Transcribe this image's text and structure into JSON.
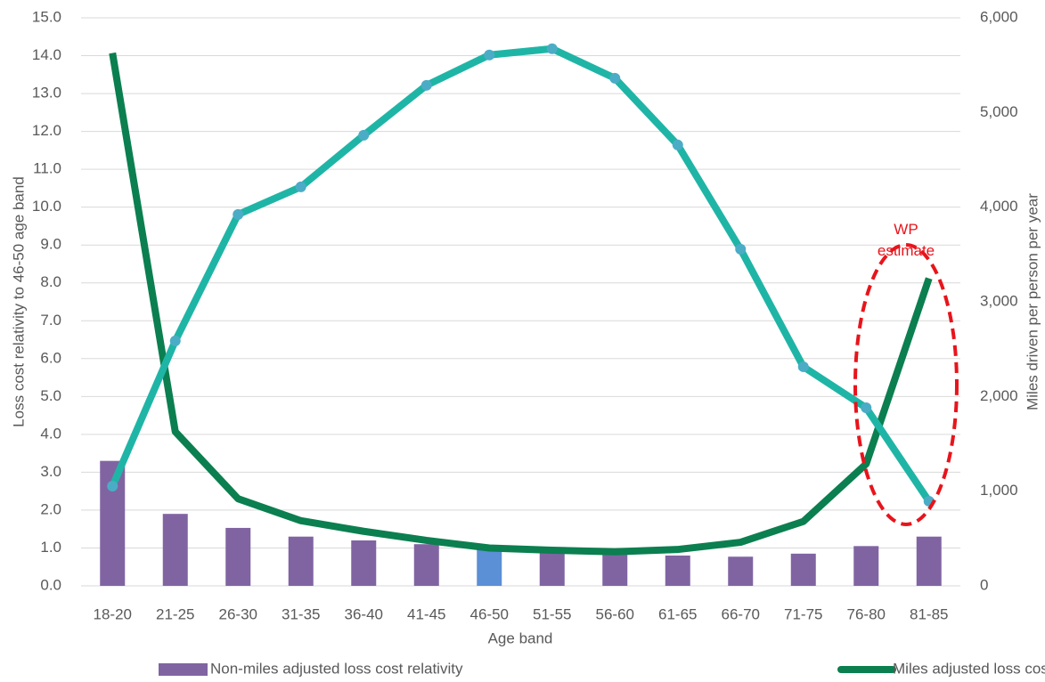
{
  "chart_data": {
    "type": "bar-line",
    "x_label": "Age band",
    "y_label": "Loss cost relativity to 46-50 age band",
    "y2_label": "Miles driven per person per year",
    "annotation": "WP estimate",
    "categories": [
      "18-20",
      "21-25",
      "26-30",
      "31-35",
      "36-40",
      "41-45",
      "46-50",
      "51-55",
      "56-60",
      "61-65",
      "66-70",
      "71-75",
      "76-80",
      "81-85"
    ],
    "ylim": [
      0,
      15
    ],
    "yticks": [
      {
        "value": 0,
        "label": "0.0"
      },
      {
        "value": 1,
        "label": "1.0"
      },
      {
        "value": 2,
        "label": "2.0"
      },
      {
        "value": 3,
        "label": "3.0"
      },
      {
        "value": 4,
        "label": "4.0"
      },
      {
        "value": 5,
        "label": "5.0"
      },
      {
        "value": 6,
        "label": "6.0"
      },
      {
        "value": 7,
        "label": "7.0"
      },
      {
        "value": 8,
        "label": "8.0"
      },
      {
        "value": 9,
        "label": "9.0"
      },
      {
        "value": 10,
        "label": "10.0"
      },
      {
        "value": 11,
        "label": "11.0"
      },
      {
        "value": 12,
        "label": "12.0"
      },
      {
        "value": 13,
        "label": "13.0"
      },
      {
        "value": 14,
        "label": "14.0"
      },
      {
        "value": 15,
        "label": "15.0"
      }
    ],
    "y2lim": [
      0,
      6000
    ],
    "y2ticks": [
      0,
      {
        "value": 1000,
        "label": "1,000"
      },
      {
        "value": 2000,
        "label": "2,000"
      },
      {
        "value": 3000,
        "label": "3,000"
      },
      {
        "value": 4000,
        "label": "4,000"
      },
      {
        "value": 5000,
        "label": "5,000"
      },
      {
        "value": 6000,
        "label": "6,000"
      }
    ],
    "grid": true,
    "legend": "bottom",
    "series": [
      {
        "name": "Non-miles adjusted loss cost relativity",
        "type": "bar",
        "color": "#8064a2",
        "colors": [
          "#8064a2",
          "#8064a2",
          "#8064a2",
          "#8064a2",
          "#8064a2",
          "#8064a2",
          "#5b8fd6",
          "#8064a2",
          "#8064a2",
          "#8064a2",
          "#8064a2",
          "#8064a2",
          "#8064a2",
          "#8064a2"
        ],
        "values": [
          3.3,
          1.9,
          1.53,
          1.3,
          1.2,
          1.1,
          1.0,
          0.9,
          0.85,
          0.8,
          0.77,
          0.85,
          1.05,
          1.3
        ]
      },
      {
        "name": "Miles adjusted loss cost relativity",
        "type": "line",
        "color": "#0b7f4f",
        "values": [
          14.07,
          4.07,
          2.3,
          1.72,
          1.44,
          1.2,
          1.0,
          0.94,
          0.9,
          0.96,
          1.15,
          1.7,
          3.22,
          8.12
        ]
      },
      {
        "type": "line",
        "color": "#1fb5a6",
        "marker_color": "#4bacc6",
        "axis": "y2",
        "values": [
          1053,
          2587,
          3923,
          4214,
          4760,
          5287,
          5607,
          5673,
          5362,
          4657,
          3556,
          2314,
          1881,
          894
        ]
      }
    ]
  }
}
